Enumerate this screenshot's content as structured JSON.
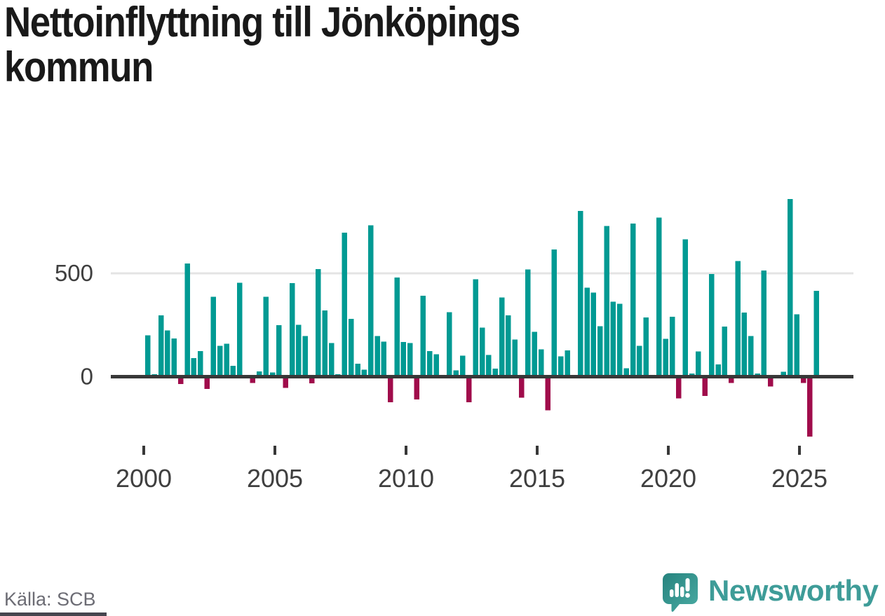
{
  "page": {
    "title": "Nettoinflyttning till Jönköpings kommun",
    "title_lines": [
      "Nettoinflyttning till Jönköpings",
      "kommun"
    ],
    "source_label": "Källa: SCB",
    "branding": {
      "wordmark": "Newsworthy"
    }
  },
  "colors": {
    "title_text": "#191919",
    "positive_bar": "#009a93",
    "negative_bar": "#a00c4b",
    "axis": "#383838",
    "gridline": "#e4e4e4",
    "axis_label": "#3f3f3f",
    "source_text": "#6c6c74",
    "brand_teal": "#3e9c98",
    "brand_icon_dark": "#2a8a85",
    "brand_icon_light": "#47a8a0",
    "footer_rule": "#45454e"
  },
  "chart_data": {
    "type": "bar",
    "title": "Nettoinflyttning till Jönköpings kommun",
    "frequency": "quarterly",
    "x_axis": {
      "ticks": [
        "2000",
        "2005",
        "2010",
        "2015",
        "2020",
        "2025"
      ]
    },
    "y_axis": {
      "ticks": [
        {
          "value": 500,
          "label": "500"
        },
        {
          "value": 0,
          "label": "0"
        }
      ],
      "gridlines": [
        500
      ]
    },
    "ylim": [
      -350,
      950
    ],
    "legend": "none",
    "series": [
      [
        "2000Q1",
        200
      ],
      [
        "2000Q2",
        12
      ],
      [
        "2000Q3",
        297
      ],
      [
        "2000Q4",
        224
      ],
      [
        "2001Q1",
        185
      ],
      [
        "2001Q2",
        -35
      ],
      [
        "2001Q3",
        548
      ],
      [
        "2001Q4",
        89
      ],
      [
        "2002Q1",
        123
      ],
      [
        "2002Q2",
        -59
      ],
      [
        "2002Q3",
        387
      ],
      [
        "2002Q4",
        150
      ],
      [
        "2003Q1",
        159
      ],
      [
        "2003Q2",
        52
      ],
      [
        "2003Q3",
        454
      ],
      [
        "2003Q4",
        0
      ],
      [
        "2004Q1",
        -30
      ],
      [
        "2004Q2",
        26
      ],
      [
        "2004Q3",
        387
      ],
      [
        "2004Q4",
        20
      ],
      [
        "2005Q1",
        249
      ],
      [
        "2005Q2",
        -55
      ],
      [
        "2005Q3",
        452
      ],
      [
        "2005Q4",
        251
      ],
      [
        "2006Q1",
        196
      ],
      [
        "2006Q2",
        -33
      ],
      [
        "2006Q3",
        520
      ],
      [
        "2006Q4",
        320
      ],
      [
        "2007Q1",
        162
      ],
      [
        "2007Q2",
        12
      ],
      [
        "2007Q3",
        697
      ],
      [
        "2007Q4",
        279
      ],
      [
        "2008Q1",
        63
      ],
      [
        "2008Q2",
        34
      ],
      [
        "2008Q3",
        733
      ],
      [
        "2008Q4",
        196
      ],
      [
        "2009Q1",
        170
      ],
      [
        "2009Q2",
        -124
      ],
      [
        "2009Q3",
        479
      ],
      [
        "2009Q4",
        167
      ],
      [
        "2010Q1",
        163
      ],
      [
        "2010Q2",
        -110
      ],
      [
        "2010Q3",
        391
      ],
      [
        "2010Q4",
        124
      ],
      [
        "2011Q1",
        109
      ],
      [
        "2011Q2",
        0
      ],
      [
        "2011Q3",
        312
      ],
      [
        "2011Q4",
        30
      ],
      [
        "2012Q1",
        101
      ],
      [
        "2012Q2",
        -124
      ],
      [
        "2012Q3",
        471
      ],
      [
        "2012Q4",
        237
      ],
      [
        "2013Q1",
        105
      ],
      [
        "2013Q2",
        39
      ],
      [
        "2013Q3",
        383
      ],
      [
        "2013Q4",
        296
      ],
      [
        "2014Q1",
        180
      ],
      [
        "2014Q2",
        -101
      ],
      [
        "2014Q3",
        518
      ],
      [
        "2014Q4",
        217
      ],
      [
        "2015Q1",
        132
      ],
      [
        "2015Q2",
        -163
      ],
      [
        "2015Q3",
        616
      ],
      [
        "2015Q4",
        98
      ],
      [
        "2016Q1",
        127
      ],
      [
        "2016Q2",
        0
      ],
      [
        "2016Q3",
        802
      ],
      [
        "2016Q4",
        430
      ],
      [
        "2017Q1",
        406
      ],
      [
        "2017Q2",
        244
      ],
      [
        "2017Q3",
        729
      ],
      [
        "2017Q4",
        363
      ],
      [
        "2018Q1",
        353
      ],
      [
        "2018Q2",
        40
      ],
      [
        "2018Q3",
        740
      ],
      [
        "2018Q4",
        150
      ],
      [
        "2019Q1",
        287
      ],
      [
        "2019Q2",
        0
      ],
      [
        "2019Q3",
        770
      ],
      [
        "2019Q4",
        183
      ],
      [
        "2020Q1",
        290
      ],
      [
        "2020Q2",
        -105
      ],
      [
        "2020Q3",
        665
      ],
      [
        "2020Q4",
        15
      ],
      [
        "2021Q1",
        122
      ],
      [
        "2021Q2",
        -94
      ],
      [
        "2021Q3",
        496
      ],
      [
        "2021Q4",
        60
      ],
      [
        "2022Q1",
        242
      ],
      [
        "2022Q2",
        -30
      ],
      [
        "2022Q3",
        560
      ],
      [
        "2022Q4",
        310
      ],
      [
        "2023Q1",
        197
      ],
      [
        "2023Q2",
        15
      ],
      [
        "2023Q3",
        513
      ],
      [
        "2023Q4",
        -47
      ],
      [
        "2024Q1",
        0
      ],
      [
        "2024Q2",
        23
      ],
      [
        "2024Q3",
        860
      ],
      [
        "2024Q4",
        302
      ],
      [
        "2025Q1",
        -30
      ],
      [
        "2025Q2",
        -290
      ],
      [
        "2025Q3",
        415
      ]
    ]
  }
}
